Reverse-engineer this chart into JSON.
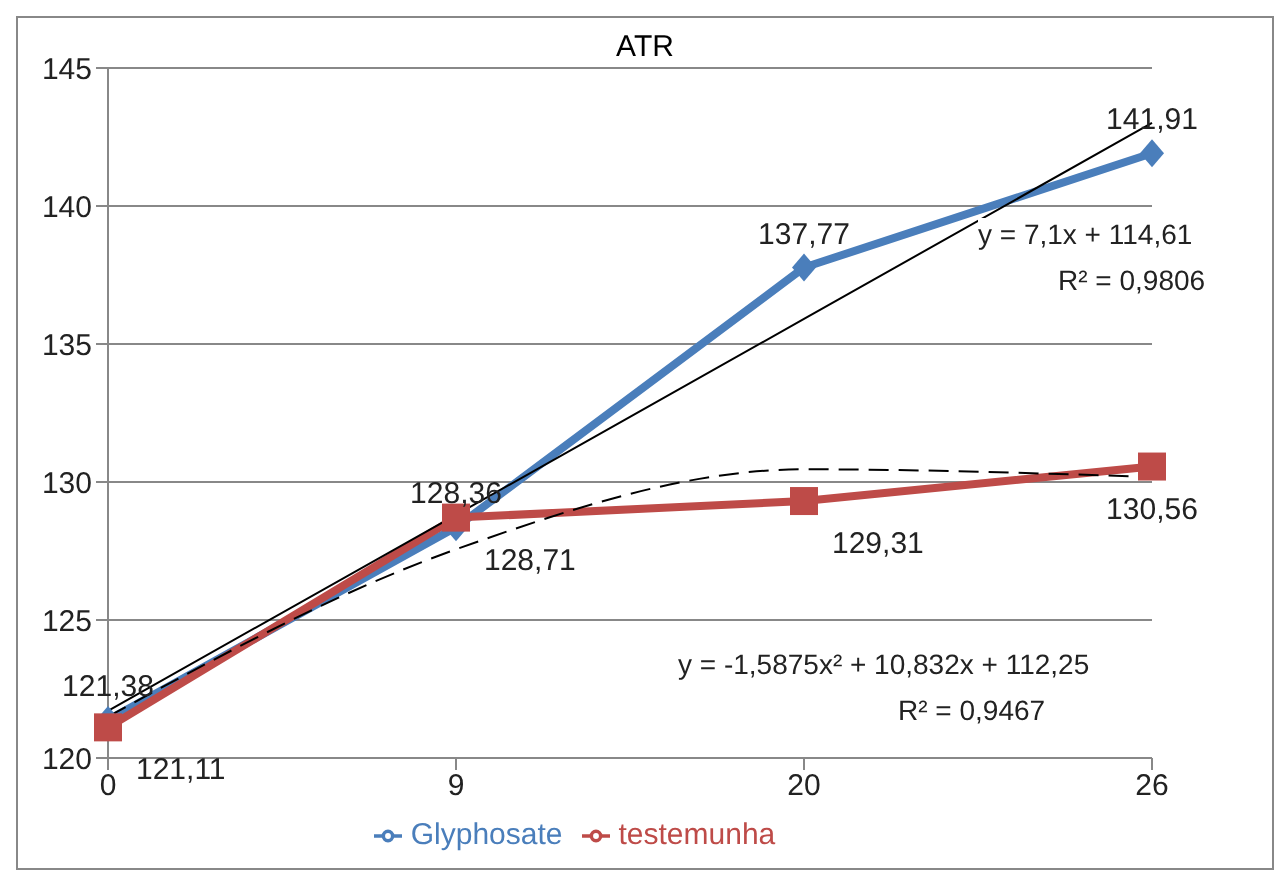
{
  "chart_data": {
    "type": "line",
    "title": "ATR",
    "categories": [
      "0",
      "9",
      "20",
      "26"
    ],
    "series": [
      {
        "name": "Glyphosate",
        "color": "#4a7ebb",
        "marker": "diamond",
        "values": [
          121.38,
          128.36,
          137.77,
          141.91
        ],
        "value_labels": [
          "121,38",
          "128,36",
          "137,77",
          "141,91"
        ]
      },
      {
        "name": "testemunha",
        "color": "#be4b48",
        "marker": "square",
        "values": [
          121.11,
          128.71,
          129.31,
          130.56
        ],
        "value_labels": [
          "121,11",
          "128,71",
          "129,31",
          "130,56"
        ]
      },
      {
        "color": "#000000",
        "marker": "none",
        "line_style": "solid",
        "values": [
          121.71,
          128.81,
          135.91,
          143.01
        ]
      },
      {
        "color": "#000000",
        "marker": "none",
        "line_style": "dashed",
        "values": [
          121.5,
          127.56,
          130.46,
          130.18
        ]
      }
    ],
    "ylim": [
      120,
      145
    ],
    "yticks": [
      120,
      125,
      130,
      135,
      140,
      145
    ],
    "grid": "y",
    "legend": "bottom",
    "annotations": [
      "y = 7,1x + 114,61",
      "R² = 0,9806",
      "y = -1,5875x² + 10,832x + 112,25",
      "R² = 0,9467"
    ]
  }
}
